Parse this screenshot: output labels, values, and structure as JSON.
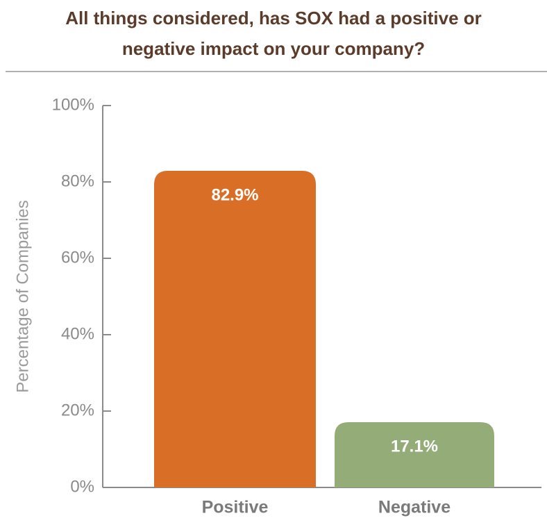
{
  "chart_data": {
    "type": "bar",
    "title": "All things considered, has SOX had a positive or negative impact on your company?",
    "y_label": "Percentage of Companies",
    "categories": [
      "Positive",
      "Negative"
    ],
    "values": [
      82.9,
      17.1
    ],
    "value_labels": [
      "82.9%",
      "17.1%"
    ],
    "colors": [
      "#d96f27",
      "#93ac78"
    ],
    "ylim": [
      0,
      100
    ],
    "yticks": [
      {
        "value": 0,
        "label": "0%"
      },
      {
        "value": 20,
        "label": "20%"
      },
      {
        "value": 40,
        "label": "40%"
      },
      {
        "value": 60,
        "label": "60%"
      },
      {
        "value": 80,
        "label": "80%"
      },
      {
        "value": 100,
        "label": "100%"
      }
    ],
    "grid": false
  }
}
